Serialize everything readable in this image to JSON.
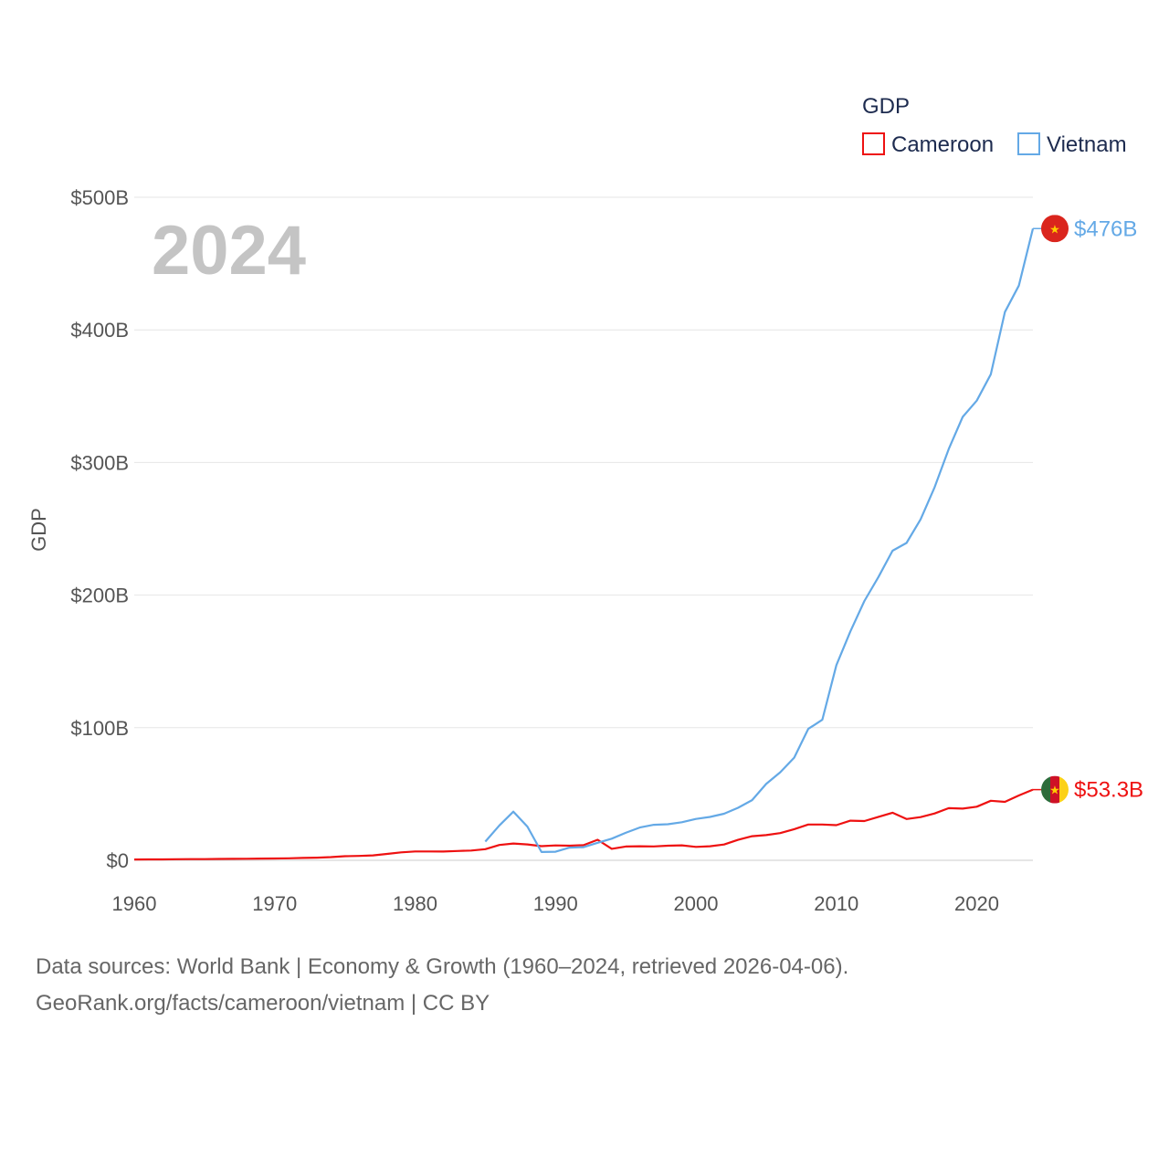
{
  "chart_data": {
    "type": "line",
    "year_label": "2024",
    "ylabel": "GDP",
    "xlabel": "",
    "xlim": [
      1960,
      2024
    ],
    "ylim": [
      0,
      500
    ],
    "x_ticks": [
      1960,
      1970,
      1980,
      1990,
      2000,
      2010,
      2020
    ],
    "y_ticks": [
      {
        "value": 0,
        "label": "$0"
      },
      {
        "value": 100,
        "label": "$100B"
      },
      {
        "value": 200,
        "label": "$200B"
      },
      {
        "value": 300,
        "label": "$300B"
      },
      {
        "value": 400,
        "label": "$400B"
      },
      {
        "value": 500,
        "label": "$500B"
      }
    ],
    "legend": {
      "title": "GDP",
      "position": "top-right"
    },
    "grid": true,
    "series": [
      {
        "name": "Cameroon",
        "color": "#ee1111",
        "end_label": "$53.3B",
        "flag": "cameroon-flag",
        "x": [
          1960,
          1961,
          1962,
          1963,
          1964,
          1965,
          1966,
          1967,
          1968,
          1969,
          1970,
          1971,
          1972,
          1973,
          1974,
          1975,
          1976,
          1977,
          1978,
          1979,
          1980,
          1981,
          1982,
          1983,
          1984,
          1985,
          1986,
          1987,
          1988,
          1989,
          1990,
          1991,
          1992,
          1993,
          1994,
          1995,
          1996,
          1997,
          1998,
          1999,
          2000,
          2001,
          2002,
          2003,
          2004,
          2005,
          2006,
          2007,
          2008,
          2009,
          2010,
          2011,
          2012,
          2013,
          2014,
          2015,
          2016,
          2017,
          2018,
          2019,
          2020,
          2021,
          2022,
          2023,
          2024
        ],
        "values": [
          0.6,
          0.7,
          0.7,
          0.8,
          0.9,
          0.9,
          1.0,
          1.1,
          1.2,
          1.3,
          1.4,
          1.5,
          1.8,
          2.0,
          2.4,
          3.1,
          3.3,
          3.7,
          4.8,
          6.0,
          6.7,
          6.7,
          6.6,
          7.0,
          7.4,
          8.4,
          11.6,
          12.7,
          12.0,
          10.7,
          11.2,
          11.0,
          11.4,
          15.5,
          8.7,
          10.4,
          10.6,
          10.5,
          11.0,
          11.3,
          10.1,
          10.6,
          11.9,
          15.4,
          18.2,
          19.0,
          20.5,
          23.5,
          27.0,
          27.0,
          26.5,
          29.9,
          29.6,
          32.8,
          35.9,
          31.1,
          32.6,
          35.3,
          39.3,
          39.0,
          40.4,
          44.9,
          44.1,
          48.9,
          53.3
        ]
      },
      {
        "name": "Vietnam",
        "color": "#64a9e6",
        "end_label": "$476B",
        "flag": "vietnam-flag",
        "x": [
          1985,
          1986,
          1987,
          1988,
          1989,
          1990,
          1991,
          1992,
          1993,
          1994,
          1995,
          1996,
          1997,
          1998,
          1999,
          2000,
          2001,
          2002,
          2003,
          2004,
          2005,
          2006,
          2007,
          2008,
          2009,
          2010,
          2011,
          2012,
          2013,
          2014,
          2015,
          2016,
          2017,
          2018,
          2019,
          2020,
          2021,
          2022,
          2023,
          2024
        ],
        "values": [
          14.1,
          26.3,
          36.7,
          25.4,
          6.3,
          6.5,
          9.6,
          9.9,
          13.2,
          16.3,
          20.7,
          24.7,
          26.8,
          27.2,
          28.7,
          31.2,
          32.7,
          35.1,
          39.6,
          45.4,
          57.6,
          66.4,
          77.4,
          99.1,
          106.0,
          147.2,
          172.6,
          195.6,
          213.7,
          233.5,
          239.3,
          257.1,
          281.4,
          310.1,
          334.4,
          346.6,
          366.5,
          413.4,
          433.4,
          476.4
        ]
      }
    ]
  },
  "footer": {
    "line1": "Data sources: World Bank | Economy & Growth (1960–2024, retrieved 2026-04-06).",
    "line2": "GeoRank.org/facts/cameroon/vietnam | CC BY"
  }
}
